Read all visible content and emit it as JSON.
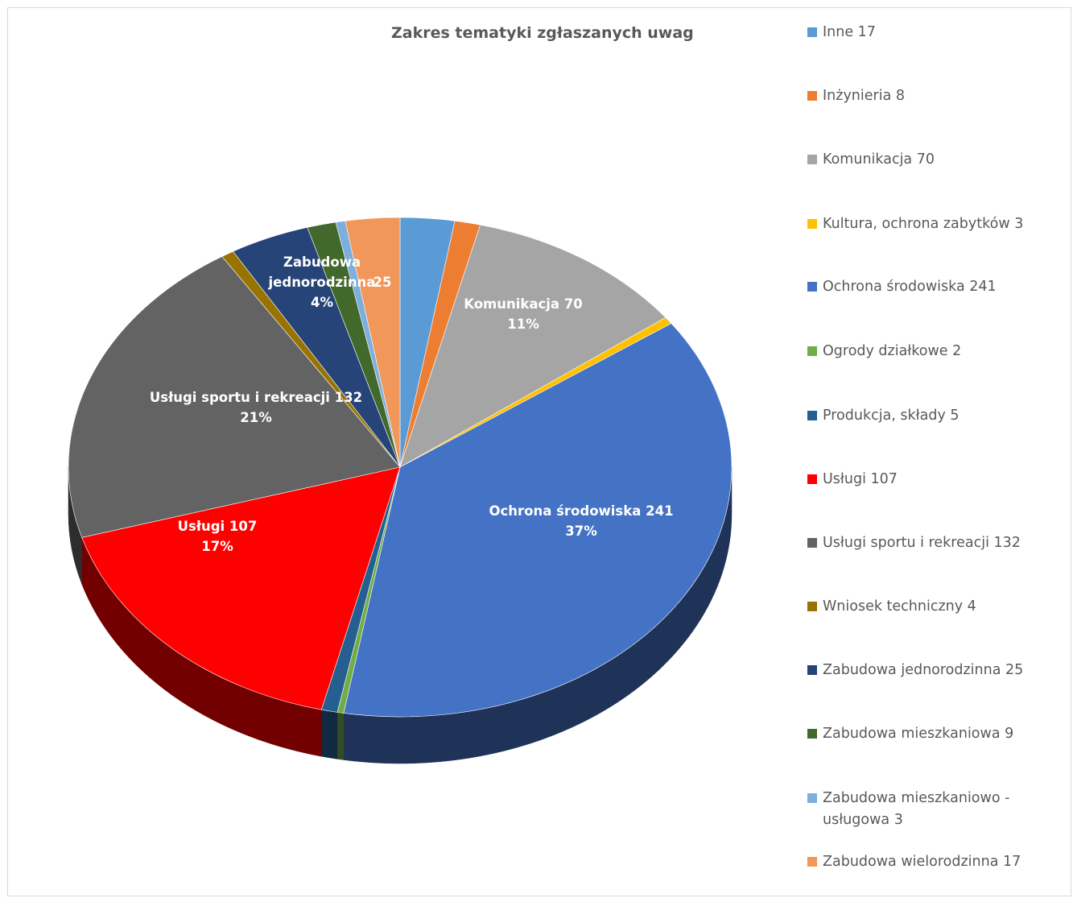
{
  "chart_data": {
    "type": "pie",
    "title": "Zakres tematyki zgłaszanych uwag",
    "legend_position": "right",
    "slices": [
      {
        "name": "Inne",
        "value": 17,
        "color": "#5B9BD5",
        "legend_text": "Inne   17"
      },
      {
        "name": "Inżynieria",
        "value": 8,
        "color": "#ED7D31",
        "legend_text": "Inżynieria   8"
      },
      {
        "name": "Komunikacja",
        "value": 70,
        "color": "#A5A5A5",
        "legend_text": "Komunikacja   70",
        "label_line1": "Komunikacja   70",
        "label_line2": "11%"
      },
      {
        "name": "Kultura, ochrona zabytków",
        "value": 3,
        "color": "#FFC000",
        "legend_text": "Kultura, ochrona zabytków   3"
      },
      {
        "name": "Ochrona środowiska",
        "value": 241,
        "color": "#4472C4",
        "legend_text": "Ochrona środowiska   241",
        "label_line1": "Ochrona środowiska   241",
        "label_line2": "37%"
      },
      {
        "name": "Ogrody działkowe",
        "value": 2,
        "color": "#70AD47",
        "legend_text": "Ogrody działkowe   2"
      },
      {
        "name": "Produkcja, składy",
        "value": 5,
        "color": "#255E91",
        "legend_text": "Produkcja, składy   5"
      },
      {
        "name": "Usługi",
        "value": 107,
        "color": "#FF0000",
        "legend_text": "Usługi   107",
        "label_line1": "Usługi   107",
        "label_line2": "17%"
      },
      {
        "name": "Usługi sportu i rekreacji",
        "value": 132,
        "color": "#636363",
        "legend_text": "Usługi sportu i rekreacji   132",
        "label_line1": "Usługi sportu i rekreacji   132",
        "label_line2": "21%"
      },
      {
        "name": "Wniosek techniczny",
        "value": 4,
        "color": "#997300",
        "legend_text": "Wniosek techniczny   4"
      },
      {
        "name": "Zabudowa jednorodzinna",
        "value": 25,
        "color": "#264478",
        "legend_text": "Zabudowa jednorodzinna   25",
        "label_line1": "Zabudowa",
        "label_line2": "jednorodzinna",
        "label_line3": "4%",
        "label_value": "25"
      },
      {
        "name": "Zabudowa mieszkaniowa",
        "value": 9,
        "color": "#43682B",
        "legend_text": "Zabudowa mieszkaniowa   9"
      },
      {
        "name": "Zabudowa mieszkaniowo - usługowa",
        "value": 3,
        "color": "#7CAFDD",
        "legend_text": "Zabudowa mieszkaniowo -",
        "legend_text_line2": "usługowa   3"
      },
      {
        "name": "Zabudowa wielorodzinna",
        "value": 17,
        "color": "#F1975A",
        "legend_text": "Zabudowa wielorodzinna   17"
      }
    ]
  }
}
